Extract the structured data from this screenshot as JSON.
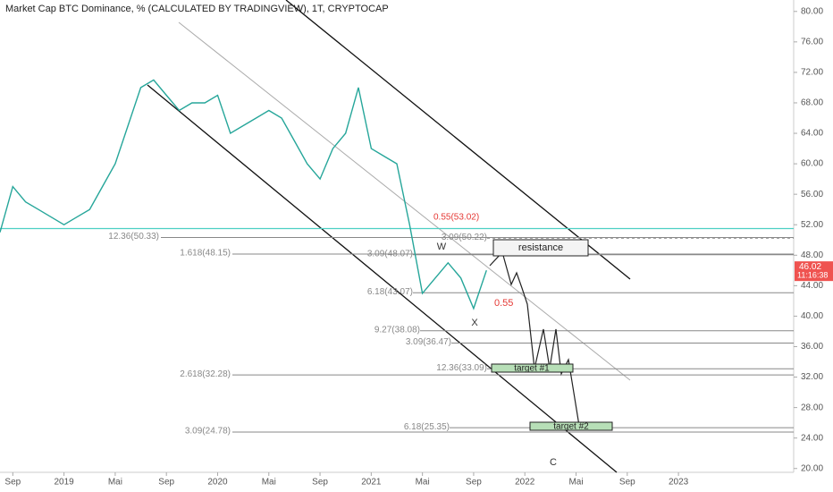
{
  "chart_data": {
    "type": "line",
    "title": "Market Cap BTC Dominance, % (CALCULATED BY TRADINGVIEW), 1T, CRYPTOCAP",
    "x": [
      "2018-08",
      "2018-09",
      "2018-10",
      "2018-11",
      "2018-12",
      "2019-01",
      "2019-02",
      "2019-03",
      "2019-04",
      "2019-05",
      "2019-06",
      "2019-07",
      "2019-08",
      "2019-09",
      "2019-10",
      "2019-11",
      "2019-12",
      "2020-01",
      "2020-02",
      "2020-03",
      "2020-04",
      "2020-05",
      "2020-06",
      "2020-07",
      "2020-08",
      "2020-09",
      "2020-10",
      "2020-11",
      "2020-12",
      "2021-01",
      "2021-02",
      "2021-03",
      "2021-04",
      "2021-05",
      "2021-06",
      "2021-07",
      "2021-08",
      "2021-09",
      "2021-10"
    ],
    "series": [
      {
        "name": "BTC.D",
        "color": "#26a69a",
        "values": [
          51,
          57,
          55,
          54,
          53,
          52,
          53,
          54,
          57,
          60,
          65,
          70,
          71,
          69,
          67,
          68,
          68,
          69,
          64,
          65,
          66,
          67,
          66,
          63,
          60,
          58,
          62,
          64,
          70,
          62,
          61,
          60,
          52,
          43,
          45,
          47,
          45,
          41,
          46.02
        ]
      }
    ],
    "xlim": [
      "2018-08",
      "2023-10"
    ],
    "xticks": [
      {
        "value": "2018-09",
        "label": "Sep"
      },
      {
        "value": "2019-01",
        "label": "2019"
      },
      {
        "value": "2019-05",
        "label": "Mai"
      },
      {
        "value": "2019-09",
        "label": "Sep"
      },
      {
        "value": "2020-01",
        "label": "2020"
      },
      {
        "value": "2020-05",
        "label": "Mai"
      },
      {
        "value": "2020-09",
        "label": "Sep"
      },
      {
        "value": "2021-01",
        "label": "2021"
      },
      {
        "value": "2021-05",
        "label": "Mai"
      },
      {
        "value": "2021-09",
        "label": "Sep"
      },
      {
        "value": "2022-01",
        "label": "2022"
      },
      {
        "value": "2022-05",
        "label": "Mai"
      },
      {
        "value": "2022-09",
        "label": "Sep"
      },
      {
        "value": "2023-01",
        "label": "2023"
      }
    ],
    "ylim": [
      19.5,
      81.5
    ],
    "yticks": [
      {
        "value": 20,
        "label": "20.00"
      },
      {
        "value": 24,
        "label": "24.00"
      },
      {
        "value": 28,
        "label": "28.00"
      },
      {
        "value": 32,
        "label": "32.00"
      },
      {
        "value": 36,
        "label": "36.00"
      },
      {
        "value": 40,
        "label": "40.00"
      },
      {
        "value": 44,
        "label": "44.00"
      },
      {
        "value": 48,
        "label": "48.00"
      },
      {
        "value": 52,
        "label": "52.00"
      },
      {
        "value": 56,
        "label": "56.00"
      },
      {
        "value": 60,
        "label": "60.00"
      },
      {
        "value": 64,
        "label": "64.00"
      },
      {
        "value": 68,
        "label": "68.00"
      },
      {
        "value": 72,
        "label": "72.00"
      },
      {
        "value": 76,
        "label": "76.00"
      },
      {
        "value": 80,
        "label": "80.00"
      }
    ],
    "current_price": {
      "value": 46.02,
      "label": "46.02",
      "countdown": "11:16:38"
    },
    "cyan_level": 51.5,
    "levels": [
      {
        "label": "12.36(50.33)",
        "value": 50.33
      },
      {
        "label": "3.09(50.22)",
        "value": 50.22
      },
      {
        "label": "1.618(48.15)",
        "value": 48.15
      },
      {
        "label": "3.09(48.07)",
        "value": 48.07
      },
      {
        "label": "6.18(43.07)",
        "value": 43.07
      },
      {
        "label": "9.27(38.08)",
        "value": 38.08
      },
      {
        "label": "3.09(36.47)",
        "value": 36.47
      },
      {
        "label": "12.36(33.09)",
        "value": 33.09
      },
      {
        "label": "2.618(32.28)",
        "value": 32.28
      },
      {
        "label": "6.18(25.35)",
        "value": 25.35
      },
      {
        "label": "3.09(24.78)",
        "value": 24.78
      }
    ],
    "annotations": {
      "red_1": "0.55(53.02)",
      "red_2": "0.55",
      "w": "W",
      "x": "X",
      "c": "C",
      "resistance": "resistance",
      "target_1": "target #1",
      "target_2": "target #2"
    }
  }
}
